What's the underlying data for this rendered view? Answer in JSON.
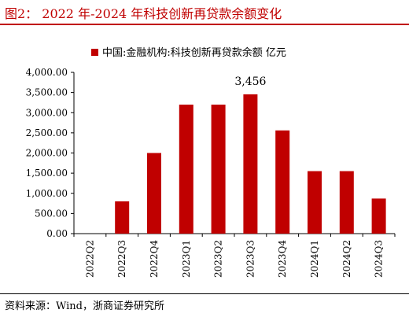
{
  "title": "图2： 2022 年-2024 年科技创新再贷款余额变化",
  "source": "资料来源：Wind，浙商证券研究所",
  "chart_data": {
    "type": "bar",
    "categories": [
      "2022Q2",
      "2022Q3",
      "2022Q4",
      "2023Q1",
      "2023Q2",
      "2023Q3",
      "2023Q4",
      "2024Q1",
      "2024Q2",
      "2024Q3"
    ],
    "series": [
      {
        "name": "中国:金融机构:科技创新再贷款余额 亿元",
        "values": [
          0,
          800,
          2000,
          3200,
          3200,
          3456,
          2560,
          1550,
          1550,
          870
        ]
      }
    ],
    "ylim": [
      0,
      4000
    ],
    "yticks": [
      "0.00",
      "500.00",
      "1,000.00",
      "1,500.00",
      "2,000.00",
      "2,500.00",
      "3,000.00",
      "3,500.00",
      "4,000.00"
    ],
    "annotations": [
      {
        "category": "2023Q3",
        "label": "3,456"
      }
    ],
    "legend_position": "top-center",
    "grid": false,
    "bar_color": "#c00000"
  }
}
